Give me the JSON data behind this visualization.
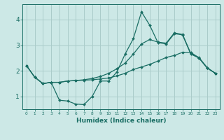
{
  "xlabel": "Humidex (Indice chaleur)",
  "background_color": "#cce8e6",
  "grid_color": "#aaccca",
  "line_color": "#1a6e64",
  "x_ticks": [
    0,
    1,
    2,
    3,
    4,
    5,
    6,
    7,
    8,
    9,
    10,
    11,
    12,
    13,
    14,
    15,
    16,
    17,
    18,
    19,
    20,
    21,
    22,
    23
  ],
  "xlim": [
    -0.5,
    23.5
  ],
  "ylim": [
    0.5,
    4.6
  ],
  "y_ticks": [
    1,
    2,
    3,
    4
  ],
  "series": [
    [
      2.2,
      1.75,
      1.5,
      1.55,
      0.85,
      0.82,
      0.7,
      0.68,
      1.0,
      1.6,
      1.6,
      1.95,
      2.65,
      3.25,
      4.3,
      3.78,
      3.1,
      3.05,
      3.45,
      3.4,
      2.65,
      2.5,
      2.1,
      1.9
    ],
    [
      2.2,
      1.75,
      1.5,
      1.55,
      1.55,
      1.6,
      1.62,
      1.63,
      1.65,
      1.68,
      1.72,
      1.8,
      1.9,
      2.05,
      2.15,
      2.25,
      2.38,
      2.52,
      2.6,
      2.72,
      2.72,
      2.5,
      2.12,
      1.9
    ],
    [
      2.2,
      1.75,
      1.5,
      1.55,
      1.55,
      1.6,
      1.62,
      1.65,
      1.7,
      1.78,
      1.9,
      2.08,
      2.3,
      2.65,
      3.05,
      3.22,
      3.12,
      3.08,
      3.48,
      3.42,
      2.68,
      2.52,
      2.12,
      1.9
    ]
  ]
}
